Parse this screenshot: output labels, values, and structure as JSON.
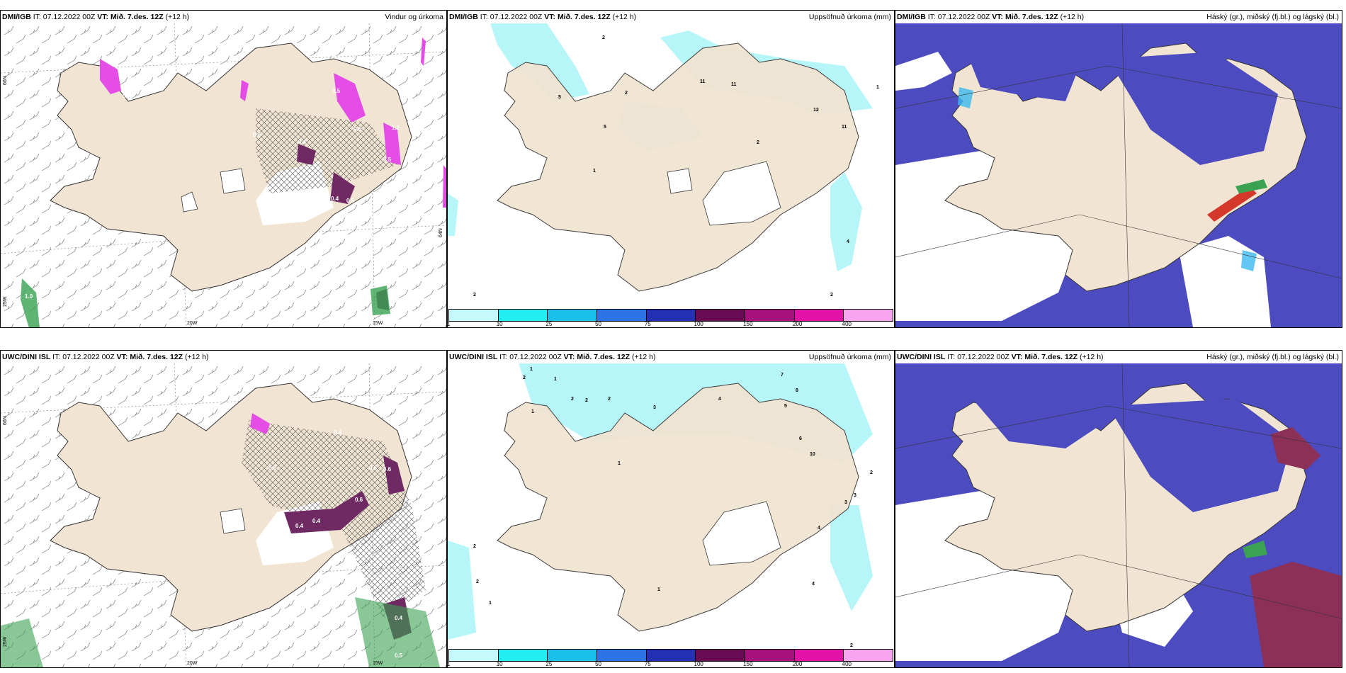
{
  "panels": [
    {
      "model": "DMI/IGB",
      "it_label": "IT:",
      "it": "07.12.2022 00Z",
      "vt_label": "VT:",
      "vt": "Mið. 7.des. 12Z",
      "lead": "(+12 h)",
      "title": "Vindur og úrkoma"
    },
    {
      "model": "DMI/IGB",
      "it_label": "IT:",
      "it": "07.12.2022 00Z",
      "vt_label": "VT:",
      "vt": "Mið. 7.des. 12Z",
      "lead": "(+12 h)",
      "title": "Uppsöfnuð úrkoma (mm)"
    },
    {
      "model": "DMI/IGB",
      "it_label": "IT:",
      "it": "07.12.2022 00Z",
      "vt_label": "VT:",
      "vt": "Mið. 7.des. 12Z",
      "lead": "(+12 h)",
      "title": "Háský (gr.), miðský (fj.bl.) og lágský (bl.)"
    },
    {
      "model": "UWC/DINI ISL",
      "it_label": "IT:",
      "it": "07.12.2022 00Z",
      "vt_label": "VT:",
      "vt": "Mið. 7.des. 12Z",
      "lead": "(+12 h)",
      "title": "Uppsöfnuð úrkoma (mm)"
    },
    {
      "model": "UWC/DINI ISL",
      "it_label": "IT:",
      "it": "07.12.2022 00Z",
      "vt_label": "VT:",
      "vt": "Mið. 7.des. 12Z",
      "lead": "(+12 h)",
      "title": "Uppsöfnuð úrkoma (mm)"
    },
    {
      "model": "UWC/DINI ISL",
      "it_label": "IT:",
      "it": "07.12.2022 00Z",
      "vt_label": "VT:",
      "vt": "Mið. 7.des. 12Z",
      "lead": "(+12 h)",
      "title": "Háský (gr.), miðský (fj.bl.) og lágský (bl.)"
    }
  ],
  "wind_axes": {
    "lon_20": "20W",
    "lon_15": "15W",
    "lat_66": "66N",
    "lat_64": "64N",
    "lon_25": "25W"
  },
  "wind_top_values": [
    "1.0",
    "0.5",
    "0.5",
    "0.6",
    "0.4",
    "0.5",
    "1.2",
    "0.5",
    "0.4",
    "0.5"
  ],
  "wind_bottom_values": [
    "0.4",
    "0.6",
    "0.6",
    "0.4",
    "0.5",
    "0.6",
    "0.4",
    "0.5",
    "0.4",
    "0.5"
  ],
  "precip_top_numbers": [
    "2",
    "5",
    "2",
    "11",
    "11",
    "12",
    "11",
    "2",
    "5",
    "1",
    "4",
    "2",
    "1",
    "2"
  ],
  "precip_bottom_numbers": [
    "1",
    "2",
    "1",
    "1",
    "2",
    "2",
    "2",
    "3",
    "4",
    "7",
    "8",
    "6",
    "10",
    "3",
    "2",
    "5",
    "4",
    "3",
    "1",
    "2",
    "2",
    "1",
    "1",
    "4",
    "2"
  ],
  "colorbar": {
    "colors": [
      "#c6f9fb",
      "#22eef2",
      "#19c1ea",
      "#2b73e6",
      "#2330b4",
      "#6a0a52",
      "#a6117d",
      "#e312a6",
      "#f6a5ee"
    ],
    "ticks": [
      "1",
      "10",
      "25",
      "50",
      "75",
      "100",
      "150",
      "200",
      "400"
    ]
  },
  "palette": {
    "land": "#f1e4d2",
    "snow_blue": "#4c4cc0",
    "cloud_med": "#3bb9ef",
    "cloud_light": "#2e8ae0",
    "precip_pink": "#e44ee6",
    "precip_purple": "#6f2a63",
    "precip_green": "#3aa251"
  }
}
